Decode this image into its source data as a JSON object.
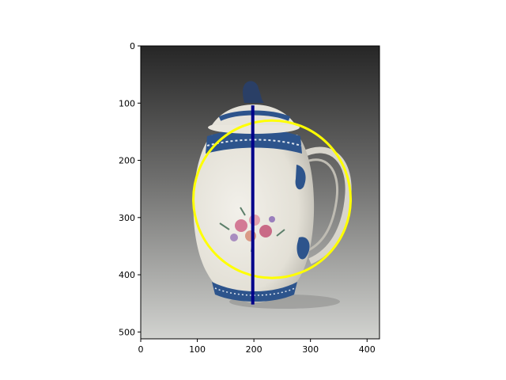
{
  "figure": {
    "x_ticks": [
      "0",
      "100",
      "200",
      "300",
      "400"
    ],
    "y_ticks": [
      "0",
      "100",
      "200",
      "300",
      "400",
      "500"
    ]
  },
  "image": {
    "subject": "porcelain-pitcher-icon",
    "background_top": "#2a2a2a",
    "background_bottom": "#cfd0cd",
    "body_color": "#ece9e0",
    "trim_color": "#2a4f86",
    "flower_color": "#c8708c"
  },
  "annotations": {
    "circle_color": "#ffff00",
    "line_color": "#00008b",
    "circle": {
      "cx": 232,
      "cy": 268,
      "r": 139
    },
    "line": {
      "x": 198,
      "y1": 104,
      "y2": 452
    }
  },
  "extent": {
    "width": 422,
    "height": 512
  }
}
